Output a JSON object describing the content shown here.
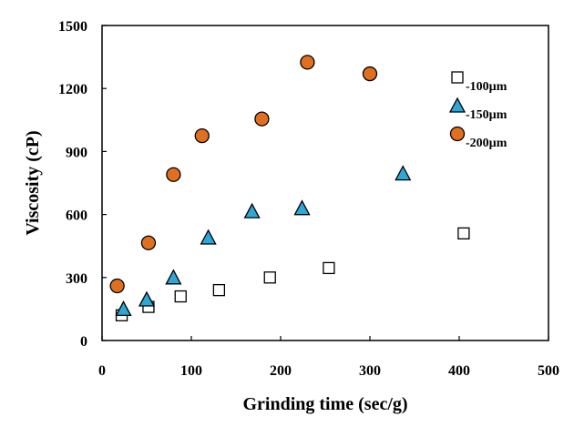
{
  "chart_data": {
    "type": "scatter",
    "title": "",
    "xlabel": "Grinding  time (sec/g)",
    "ylabel": "Viscosity  (cP)",
    "xlim": [
      0,
      500
    ],
    "ylim": [
      0,
      1500
    ],
    "xticks": [
      "0",
      "100",
      "200",
      "300",
      "400",
      "500"
    ],
    "yticks": [
      "0",
      "300",
      "600",
      "900",
      "1200",
      "1500"
    ],
    "legend_position": "top-right",
    "series": [
      {
        "name": "-100µm",
        "marker": "square",
        "fill": "#ffffff",
        "stroke": "#000000",
        "x": [
          22,
          52,
          88,
          131,
          188,
          254,
          405
        ],
        "y": [
          120,
          160,
          210,
          240,
          300,
          345,
          510
        ]
      },
      {
        "name": "-150µm",
        "marker": "triangle",
        "fill": "#2ea6d6",
        "stroke": "#000000",
        "x": [
          24,
          50,
          80,
          119,
          168,
          224,
          337
        ],
        "y": [
          150,
          195,
          300,
          490,
          615,
          630,
          795
        ]
      },
      {
        "name": "-200µm",
        "marker": "circle",
        "fill": "#e07020",
        "stroke": "#000000",
        "x": [
          17,
          52,
          80,
          112,
          179,
          230,
          300
        ],
        "y": [
          260,
          465,
          790,
          975,
          1055,
          1325,
          1270
        ]
      }
    ]
  }
}
